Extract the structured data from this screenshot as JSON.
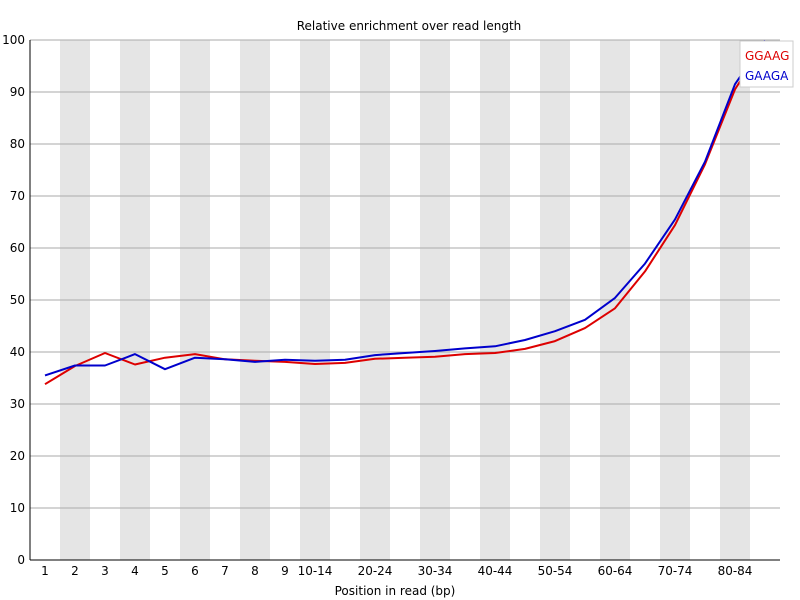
{
  "chart_data": {
    "type": "line",
    "title": "Relative enrichment over read length",
    "xlabel": "Position in read (bp)",
    "ylabel": "",
    "ylim": [
      0,
      100
    ],
    "yticks": [
      0,
      10,
      20,
      30,
      40,
      50,
      60,
      70,
      80,
      90,
      100
    ],
    "grid": true,
    "legend_position": "top-right",
    "categories": [
      "1",
      "2",
      "3",
      "4",
      "5",
      "6",
      "7",
      "8",
      "9",
      "10-14",
      "15-19",
      "20-24",
      "25-29",
      "30-34",
      "35-39",
      "40-44",
      "45-49",
      "50-54",
      "55-59",
      "60-64",
      "65-69",
      "70-74",
      "75-79",
      "80-84",
      "85-86"
    ],
    "tick_labels": [
      "1",
      "2",
      "3",
      "4",
      "5",
      "6",
      "7",
      "8",
      "9",
      "10-14",
      "",
      "20-24",
      "",
      "30-34",
      "",
      "40-44",
      "",
      "50-54",
      "",
      "60-64",
      "",
      "70-74",
      "",
      "80-84",
      ""
    ],
    "series": [
      {
        "name": "GGAAG",
        "color": "#dd0000",
        "values": [
          33.8,
          37.3,
          39.8,
          37.6,
          38.9,
          39.6,
          38.6,
          38.3,
          38.1,
          37.7,
          37.9,
          38.7,
          38.9,
          39.1,
          39.6,
          39.8,
          40.6,
          42.1,
          44.6,
          48.4,
          55.5,
          64.4,
          76.1,
          90.5,
          99.6
        ]
      },
      {
        "name": "GAAGA",
        "color": "#0000cc",
        "values": [
          35.5,
          37.4,
          37.4,
          39.6,
          36.7,
          38.9,
          38.6,
          38.1,
          38.5,
          38.3,
          38.5,
          39.4,
          39.8,
          40.2,
          40.7,
          41.1,
          42.3,
          44.0,
          46.2,
          50.4,
          57.0,
          65.5,
          76.6,
          91.5,
          99.9
        ]
      }
    ],
    "colors": {
      "band": "#e5e5e5",
      "grid": "#aaaaaa",
      "axis": "#000000"
    }
  }
}
